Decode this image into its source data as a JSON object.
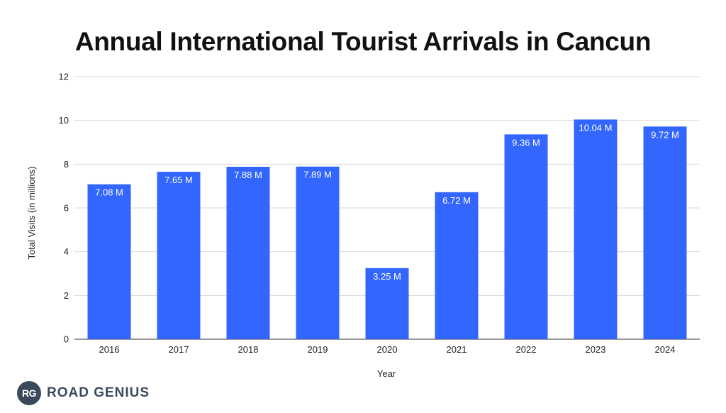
{
  "chart_data": {
    "type": "bar",
    "title": "Annual International Tourist Arrivals in Cancun",
    "xlabel": "Year",
    "ylabel": "Total Visits (in millions)",
    "ylim": [
      0,
      12
    ],
    "yticks": [
      0,
      2,
      4,
      6,
      8,
      10,
      12
    ],
    "grid": true,
    "bar_color": "#3366ff",
    "categories": [
      "2016",
      "2017",
      "2018",
      "2019",
      "2020",
      "2021",
      "2022",
      "2023",
      "2024"
    ],
    "values": [
      7.08,
      7.65,
      7.88,
      7.89,
      3.25,
      6.72,
      9.36,
      10.04,
      9.72
    ],
    "data_labels": [
      "7.08 M",
      "7.65 M",
      "7.88 M",
      "7.89 M",
      "3.25 M",
      "6.72 M",
      "9.36 M",
      "10.04 M",
      "9.72 M"
    ]
  },
  "brand": {
    "badge": "RG",
    "name": "ROAD GENIUS"
  }
}
